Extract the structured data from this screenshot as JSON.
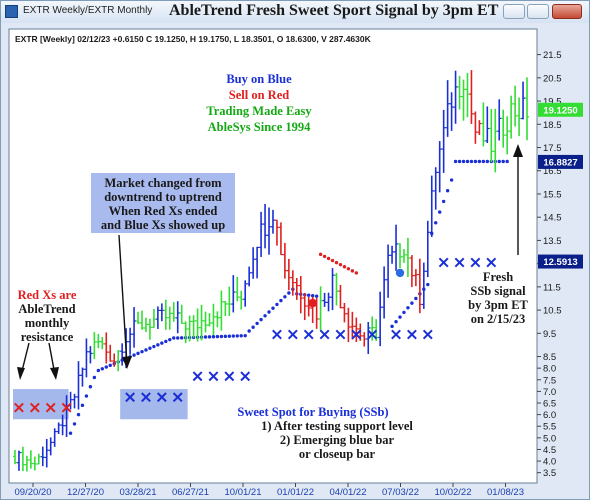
{
  "window": {
    "name": "EXTR Weekly/EXTR Monthly",
    "title": "AbleTrend Fresh Sweet Sport Signal by 3pm ET"
  },
  "header": {
    "text": "EXTR [Weekly] 02/12/23 +0.6150 C 19.1250, H 19.1750, L 18.3501, O 18.6300, V 287.4630K"
  },
  "chart_data": {
    "type": "candlestick",
    "price_range": [
      3.4,
      22.0
    ],
    "y_ticks": [
      "3.5",
      "4.0",
      "4.5",
      "5.0",
      "5.5",
      "6.0",
      "6.5",
      "7.0",
      "7.5",
      "8.0",
      "8.5",
      "9.5",
      "10.5",
      "11.5",
      "12.5",
      "13.5",
      "14.5",
      "15.5",
      "16.5",
      "17.5",
      "18.5",
      "19.5",
      "20.5",
      "21.5"
    ],
    "x_ticks": [
      "09/20/20",
      "12/27/20",
      "03/28/21",
      "06/27/21",
      "10/01/21",
      "01/01/22",
      "04/01/22",
      "07/03/22",
      "10/02/22",
      "01/08/23"
    ],
    "bar_count": 130,
    "price_path": [
      [
        0,
        4.2
      ],
      [
        5,
        3.9
      ],
      [
        10,
        5.0
      ],
      [
        15,
        6.8
      ],
      [
        18,
        8.6
      ],
      [
        21,
        9.1
      ],
      [
        25,
        8.4
      ],
      [
        28,
        9.4
      ],
      [
        32,
        9.9
      ],
      [
        38,
        10.2
      ],
      [
        45,
        9.8
      ],
      [
        52,
        10.6
      ],
      [
        57,
        11.2
      ],
      [
        61,
        13.6
      ],
      [
        65,
        14.8
      ],
      [
        68,
        12.3
      ],
      [
        72,
        11.3
      ],
      [
        76,
        10.4
      ],
      [
        80,
        11.8
      ],
      [
        84,
        10.1
      ],
      [
        88,
        9.3
      ],
      [
        91,
        9.6
      ],
      [
        94,
        12.6
      ],
      [
        98,
        13.3
      ],
      [
        102,
        11.1
      ],
      [
        106,
        16.6
      ],
      [
        110,
        19.6
      ],
      [
        113,
        20.6
      ],
      [
        116,
        18.2
      ],
      [
        120,
        17.6
      ],
      [
        125,
        19.1
      ],
      [
        129,
        19.1
      ]
    ],
    "colors": {
      "up": "#1a2fd6",
      "down": "#e02020",
      "neutral": "#33dd33",
      "stop_dots": "#1a2fd6",
      "resistance": "#e02020",
      "shade": "#8fa6e6"
    },
    "red_x": {
      "price": 6.3,
      "bars": [
        1,
        5,
        9,
        13
      ]
    },
    "blue_x_groups": [
      {
        "price": 6.75,
        "bars": [
          29,
          33,
          37,
          41
        ]
      },
      {
        "price": 7.65,
        "bars": [
          46,
          50,
          54,
          58
        ]
      },
      {
        "price": 9.45,
        "bars": [
          66,
          70,
          74,
          78,
          82,
          86,
          90
        ]
      },
      {
        "price": 9.45,
        "bars": [
          96,
          100,
          104
        ]
      },
      {
        "price": 12.55,
        "bars": [
          108,
          112,
          116,
          120
        ]
      }
    ],
    "shade_zone": [
      {
        "from_bar": 0,
        "to_bar": 13,
        "low": 5.8,
        "high": 7.1
      },
      {
        "from_bar": 27,
        "to_bar": 43,
        "low": 5.8,
        "high": 7.1
      }
    ],
    "stop_dots": [
      {
        "from_bar": 14,
        "to_bar": 20,
        "start": 5.2,
        "end": 7.6
      },
      {
        "from_bar": 21,
        "to_bar": 40,
        "start": 7.9,
        "end": 9.3
      },
      {
        "from_bar": 41,
        "to_bar": 58,
        "start": 9.3,
        "end": 9.4
      },
      {
        "from_bar": 59,
        "to_bar": 70,
        "start": 9.6,
        "end": 11.4
      },
      {
        "from_bar": 71,
        "to_bar": 76,
        "start": 11.2,
        "end": 11.1
      },
      {
        "from_bar": 95,
        "to_bar": 104,
        "start": 9.8,
        "end": 11.6
      },
      {
        "from_bar": 105,
        "to_bar": 110,
        "start": 13.8,
        "end": 16.1
      },
      {
        "from_bar": 111,
        "to_bar": 124,
        "start": 16.9,
        "end": 16.9
      }
    ],
    "red_stop_dots": {
      "from_bar": 77,
      "to_bar": 86,
      "start": 12.9,
      "end": 12.1
    },
    "signal_circles": [
      {
        "bar": 75,
        "price": 10.8,
        "color": "#e02020"
      },
      {
        "bar": 97,
        "price": 12.1,
        "color": "#2a6de0"
      }
    ],
    "last_price": "19.1250",
    "price_badges": [
      {
        "label": "19.1250",
        "price": 19.125,
        "bg": "#33dd33",
        "fg": "#ffffff"
      },
      {
        "label": "16.8827",
        "price": 16.88,
        "bg": "#0a1f8a",
        "fg": "#ffffff"
      },
      {
        "label": "12.5913",
        "price": 12.59,
        "bg": "#0a1f8a",
        "fg": "#ffffff"
      }
    ]
  },
  "annotations": {
    "brand": [
      "Buy on Blue",
      "Sell on Red",
      "Trading Made Easy",
      "AbleSys Since 1994"
    ],
    "brand_colors": [
      "#1a2fd6",
      "#e02020",
      "#14a814",
      "#14a814"
    ],
    "market_changed": [
      "Market changed from",
      "downtrend to uptrend",
      "When Red Xs ended",
      "and Blue Xs showed up"
    ],
    "red_x_note": [
      "Red Xs are",
      "AbleTrend",
      "monthly",
      "resistance"
    ],
    "fresh_ssb": [
      "Fresh",
      "SSb signal",
      "by 3pm ET",
      "on 2/15/23"
    ],
    "sweet_spot": [
      "Sweet Spot for Buying (SSb)",
      "1) After testing support level",
      "2) Emerging blue bar",
      "or closeup bar"
    ]
  }
}
